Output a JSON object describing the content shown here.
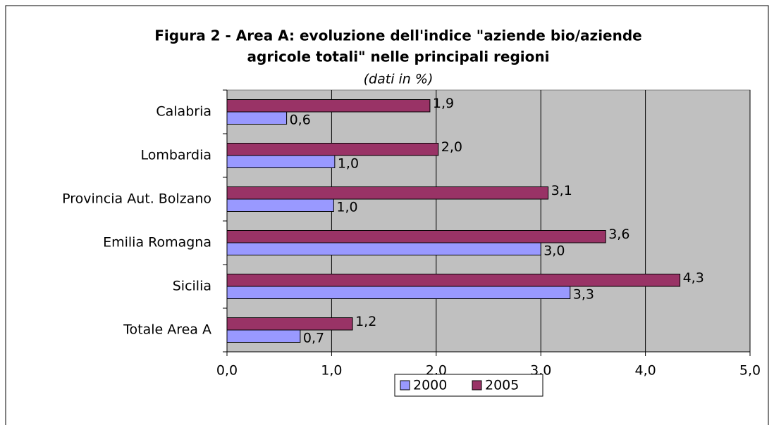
{
  "chart_data": {
    "type": "bar",
    "orientation": "horizontal",
    "title": [
      "Figura 2 - Area A: evoluzione dell'indice \"aziende bio/aziende",
      "agricole totali\" nelle principali regioni"
    ],
    "subtitle": "(dati in %)",
    "categories": [
      "Calabria",
      "Lombardia",
      "Provincia Aut. Bolzano",
      "Emilia Romagna",
      "Sicilia",
      "Totale Area A"
    ],
    "series": [
      {
        "name": "2000",
        "color": "#9999ff",
        "values": [
          0.57,
          1.03,
          1.02,
          3.0,
          3.28,
          0.7
        ],
        "value_labels": [
          "0,6",
          "1,0",
          "1,0",
          "3,0",
          "3,3",
          "0,7"
        ]
      },
      {
        "name": "2005",
        "color": "#993366",
        "values": [
          1.94,
          2.02,
          3.07,
          3.62,
          4.33,
          1.2
        ],
        "value_labels": [
          "1,9",
          "2,0",
          "3,1",
          "3,6",
          "4,3",
          "1,2"
        ]
      }
    ],
    "xlim": [
      0,
      5
    ],
    "xticks": [
      {
        "value": 0,
        "label": "0,0"
      },
      {
        "value": 1,
        "label": "1,0"
      },
      {
        "value": 2,
        "label": "2,0"
      },
      {
        "value": 3,
        "label": "3,0"
      },
      {
        "value": 4,
        "label": "4,0"
      },
      {
        "value": 5,
        "label": "5,0"
      }
    ],
    "grid": true,
    "legend": "bottom",
    "plot_background": "#c0c0c0"
  }
}
